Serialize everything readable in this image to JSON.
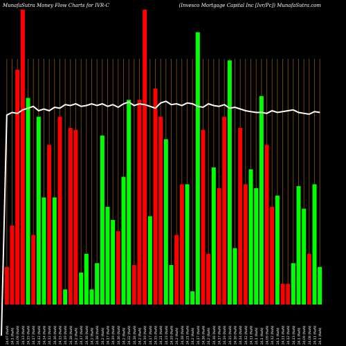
{
  "titles": {
    "left": "MunafaSutra  Money Flow  Charts for IVR-C",
    "right": "(Invesco  Mortgage   Capital Inc [Ivr/Pc]) MunafaSutra.com"
  },
  "colors": {
    "background": "#000000",
    "up": "#00ff00",
    "down": "#ff0000",
    "grid": "#8a5a12",
    "line": "#ffffff"
  },
  "chart_data": {
    "type": "bar",
    "categories": [
      "24.07 (NaN)",
      "24.1 (NaN)",
      "24.09 (NaN)",
      "24.13 (NaN)",
      "24.15 (NaN)",
      "24.17 (NaN)",
      "24.12 (NaN)",
      "24.14 (NaN)",
      "24.12 (NaN)",
      "24.16 (NaN)",
      "24.15 (NaN)",
      "24.19 (NaN)",
      "24.18 (NaN)",
      "24.2 (NaN)",
      "24.17 (NaN)",
      "24.18 (NaN)",
      "24.2 (NaN)",
      "24.18 (NaN)",
      "24.2 (NaN)",
      "24.17 (NaN)",
      "24.19 (NaN)",
      "24.16 (NaN)",
      "24.2 (NaN)",
      "24.22 (NaN)",
      "24.18 (NaN)",
      "24.2 (NaN)",
      "24.19 (NaN)",
      "24.17 (NaN)",
      "24.15 (NaN)",
      "24.21 (NaN)",
      "24.23 (NaN)",
      "24.19 (NaN)",
      "24.2 (NaN)",
      "24.18 (NaN)",
      "24.21 (NaN)",
      "24.2 (NaN)",
      "24.17 (NaN)",
      "24.16 (NaN)",
      "24.2 (NaN)",
      "24.18 (NaN)",
      "24.17 (NaN)",
      "24.19 (NaN)",
      "24.15 (NaN)",
      "24.16 (NaN)",
      "24.14 (NaN)",
      "24.12 (NaN)",
      "24.11 (NaN)",
      "24.1 (NaN)",
      "24.1 (NaN)",
      "24.09 (NaN)",
      "24.12 (NaN)",
      "24.1 (NaN)",
      "24.11 (NaN)",
      "24.12 (NaN)",
      "24.13 (NaN)",
      "24.1 (NaN)",
      "24.09 (NaN)",
      "24.08 (NaN)",
      "24.11 (NaN)",
      "24.1 (NaN)"
    ],
    "series": [
      {
        "values": [
          20,
          42,
          125,
          157,
          110,
          37,
          100,
          57,
          85,
          57,
          100,
          8,
          94,
          93,
          17,
          27,
          8,
          22,
          90,
          52,
          45,
          39,
          68,
          109,
          21,
          109,
          157,
          47,
          115,
          100,
          88,
          21,
          37,
          64,
          64,
          7,
          145,
          93,
          27,
          73,
          62,
          100,
          130,
          30,
          94,
          64,
          72,
          62,
          111,
          85,
          52,
          58,
          11,
          11,
          22,
          63,
          51,
          27,
          64,
          20
        ],
        "colors": [
          "red",
          "red",
          "red",
          "red",
          "green",
          "red",
          "green",
          "green",
          "red",
          "green",
          "red",
          "green",
          "red",
          "red",
          "green",
          "green",
          "green",
          "green",
          "green",
          "green",
          "green",
          "red",
          "green",
          "green",
          "red",
          "red",
          "red",
          "green",
          "red",
          "red",
          "green",
          "green",
          "red",
          "red",
          "green",
          "green",
          "green",
          "red",
          "red",
          "green",
          "red",
          "red",
          "green",
          "green",
          "red",
          "red",
          "green",
          "green",
          "green",
          "red",
          "red",
          "green",
          "red",
          "red",
          "green",
          "green",
          "green",
          "red",
          "green",
          "green"
        ]
      }
    ],
    "line": [
      24.07,
      24.1,
      24.09,
      24.13,
      24.15,
      24.17,
      24.12,
      24.14,
      24.12,
      24.16,
      24.15,
      24.19,
      24.18,
      24.2,
      24.17,
      24.18,
      24.2,
      24.18,
      24.2,
      24.17,
      24.19,
      24.16,
      24.2,
      24.22,
      24.18,
      24.2,
      24.19,
      24.17,
      24.15,
      24.21,
      24.23,
      24.19,
      24.2,
      24.18,
      24.21,
      24.2,
      24.17,
      24.16,
      24.2,
      24.18,
      24.17,
      24.19,
      24.15,
      24.16,
      24.14,
      24.12,
      24.11,
      24.1,
      24.1,
      24.09,
      24.12,
      24.1,
      24.11,
      24.12,
      24.13,
      24.1,
      24.09,
      24.08,
      24.11,
      24.1
    ],
    "grid": true
  }
}
